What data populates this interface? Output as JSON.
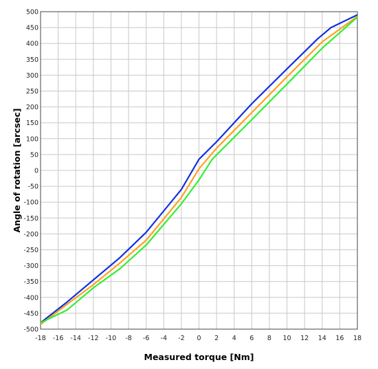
{
  "chart_data": {
    "type": "line",
    "title": "",
    "xlabel": "Measured torque [Nm]",
    "ylabel": "Angle of rotation [arcsec]",
    "xlim": [
      -18,
      18
    ],
    "ylim": [
      -500,
      500
    ],
    "xticks": [
      -18,
      -16,
      -14,
      -12,
      -10,
      -8,
      -6,
      -4,
      -2,
      0,
      2,
      4,
      6,
      8,
      10,
      12,
      14,
      16,
      18
    ],
    "yticks": [
      -500,
      -450,
      -400,
      -350,
      -300,
      -250,
      -200,
      -150,
      -100,
      -50,
      0,
      50,
      100,
      150,
      200,
      250,
      300,
      350,
      400,
      450,
      500
    ],
    "grid": true,
    "legend": "none",
    "series": [
      {
        "color": "#1030e0",
        "x": [
          -18,
          -15,
          -12,
          -9,
          -6,
          -2,
          0,
          2,
          6,
          10,
          13.5,
          15,
          18
        ],
        "y": [
          -480,
          -415,
          -345,
          -275,
          -195,
          -60,
          35,
          90,
          210,
          320,
          415,
          450,
          490
        ]
      },
      {
        "color": "#ffa020",
        "x": [
          -18,
          -15,
          -12,
          -9,
          -6,
          -2,
          0,
          2,
          6,
          10,
          14,
          18
        ],
        "y": [
          -485,
          -422,
          -360,
          -292,
          -220,
          -85,
          5,
          70,
          182,
          295,
          405,
          485
        ]
      },
      {
        "color": "#33ee33",
        "x": [
          -18,
          -15,
          -12,
          -9,
          -6,
          -2,
          0,
          1.5,
          6,
          10,
          14,
          18
        ],
        "y": [
          -480,
          -440,
          -370,
          -310,
          -235,
          -105,
          -30,
          35,
          160,
          272,
          385,
          483
        ]
      }
    ]
  }
}
